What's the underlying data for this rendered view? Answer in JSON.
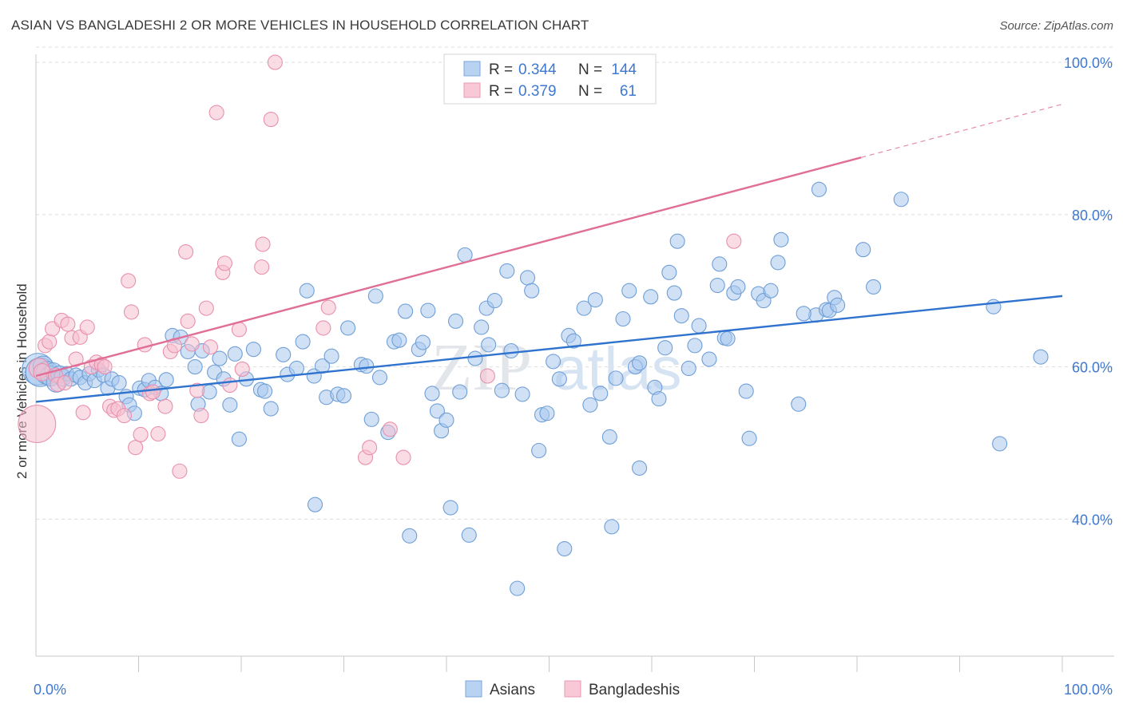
{
  "title": "ASIAN VS BANGLADESHI 2 OR MORE VEHICLES IN HOUSEHOLD CORRELATION CHART",
  "source": "Source: ZipAtlas.com",
  "watermark": {
    "zip": "ZIP",
    "atlas": "atlas"
  },
  "colors": {
    "asian_fill": "#a9c8ef",
    "asian_stroke": "#6f9fd6",
    "asian_line": "#2f73cf",
    "bangla_fill": "#f6bfd0",
    "bangla_stroke": "#e890ae",
    "bangla_line": "#e06e97",
    "tick_label": "#3f78cf",
    "grid": "#dddddd"
  },
  "legend": {
    "rows": [
      {
        "r_label": "R =",
        "r_value": "0.344",
        "n_label": "N =",
        "n_value": "144"
      },
      {
        "r_label": "R =",
        "r_value": "0.379",
        "n_label": "N =",
        "n_value": "61"
      }
    ]
  },
  "chart_data": {
    "type": "scatter",
    "xlabel": "",
    "ylabel": "2 or more Vehicles in Household",
    "xlim": [
      0,
      100
    ],
    "ylim": [
      22,
      102
    ],
    "x_tick_labels": [
      "0.0%",
      "100.0%"
    ],
    "y_ticks": [
      40,
      60,
      80,
      100
    ],
    "y_tick_labels": [
      "40.0%",
      "60.0%",
      "80.0%",
      "100.0%"
    ],
    "grid": "horizontal dashed",
    "legend_position": "top-center",
    "bottom_legend": [
      "Asians",
      "Bangladeshis"
    ],
    "series": [
      {
        "name": "Asians",
        "r": 0.344,
        "n": 144,
        "trend": {
          "x": [
            0,
            100
          ],
          "y": [
            55.4,
            69.3
          ],
          "style": "solid"
        },
        "points": [
          [
            0.2,
            59.7
          ],
          [
            0.4,
            59.3
          ],
          [
            0.7,
            60.1
          ],
          [
            1.1,
            59.2
          ],
          [
            1.4,
            58.8
          ],
          [
            1.7,
            59.4
          ],
          [
            2.0,
            58.0
          ],
          [
            2.3,
            59.0
          ],
          [
            2.6,
            58.6
          ],
          [
            3.0,
            59.1
          ],
          [
            3.4,
            58.4
          ],
          [
            3.9,
            58.9
          ],
          [
            4.3,
            58.6
          ],
          [
            4.8,
            57.9
          ],
          [
            5.2,
            59.1
          ],
          [
            5.7,
            58.2
          ],
          [
            6.1,
            59.6
          ],
          [
            6.6,
            58.9
          ],
          [
            7.0,
            57.2
          ],
          [
            7.4,
            58.4
          ],
          [
            8.1,
            57.9
          ],
          [
            8.8,
            56.1
          ],
          [
            9.1,
            55.0
          ],
          [
            9.6,
            53.9
          ],
          [
            10.1,
            57.2
          ],
          [
            10.6,
            57.0
          ],
          [
            11.0,
            58.2
          ],
          [
            11.6,
            57.3
          ],
          [
            12.2,
            56.5
          ],
          [
            12.7,
            58.3
          ],
          [
            13.3,
            64.1
          ],
          [
            14.1,
            63.9
          ],
          [
            14.8,
            62.0
          ],
          [
            15.5,
            60.0
          ],
          [
            15.8,
            55.1
          ],
          [
            16.2,
            62.1
          ],
          [
            16.9,
            56.7
          ],
          [
            17.4,
            59.3
          ],
          [
            17.9,
            61.1
          ],
          [
            18.3,
            58.4
          ],
          [
            18.9,
            55.0
          ],
          [
            19.4,
            61.7
          ],
          [
            19.8,
            50.5
          ],
          [
            20.5,
            58.4
          ],
          [
            21.2,
            62.3
          ],
          [
            21.9,
            57.0
          ],
          [
            22.3,
            56.8
          ],
          [
            22.9,
            54.5
          ],
          [
            24.1,
            61.6
          ],
          [
            24.5,
            59.0
          ],
          [
            25.4,
            59.8
          ],
          [
            26.0,
            63.3
          ],
          [
            26.4,
            70.0
          ],
          [
            27.1,
            58.8
          ],
          [
            27.9,
            60.1
          ],
          [
            28.3,
            56.0
          ],
          [
            28.8,
            61.4
          ],
          [
            29.4,
            56.4
          ],
          [
            30.0,
            56.2
          ],
          [
            30.4,
            65.1
          ],
          [
            31.7,
            60.3
          ],
          [
            32.2,
            60.1
          ],
          [
            32.7,
            53.1
          ],
          [
            33.1,
            69.3
          ],
          [
            33.5,
            58.6
          ],
          [
            34.3,
            51.4
          ],
          [
            34.9,
            63.3
          ],
          [
            35.4,
            63.5
          ],
          [
            36.0,
            67.3
          ],
          [
            36.4,
            37.8
          ],
          [
            37.3,
            62.3
          ],
          [
            37.7,
            63.2
          ],
          [
            38.2,
            67.4
          ],
          [
            38.6,
            56.5
          ],
          [
            39.1,
            54.2
          ],
          [
            39.5,
            51.6
          ],
          [
            40.0,
            53.0
          ],
          [
            40.4,
            41.5
          ],
          [
            40.9,
            66.0
          ],
          [
            41.3,
            56.7
          ],
          [
            41.8,
            74.7
          ],
          [
            42.2,
            37.9
          ],
          [
            42.8,
            61.1
          ],
          [
            43.4,
            65.2
          ],
          [
            43.9,
            67.7
          ],
          [
            44.7,
            68.7
          ],
          [
            45.4,
            56.9
          ],
          [
            45.9,
            72.6
          ],
          [
            46.3,
            62.1
          ],
          [
            46.9,
            30.9
          ],
          [
            47.4,
            56.4
          ],
          [
            47.9,
            71.7
          ],
          [
            48.3,
            70.0
          ],
          [
            49.0,
            49.0
          ],
          [
            49.3,
            53.7
          ],
          [
            49.8,
            53.9
          ],
          [
            50.4,
            60.7
          ],
          [
            51.0,
            58.4
          ],
          [
            51.5,
            36.1
          ],
          [
            51.9,
            64.1
          ],
          [
            52.4,
            63.4
          ],
          [
            53.4,
            67.7
          ],
          [
            54.0,
            55.0
          ],
          [
            54.5,
            68.8
          ],
          [
            55.0,
            56.5
          ],
          [
            55.9,
            50.8
          ],
          [
            56.1,
            39.0
          ],
          [
            56.5,
            58.5
          ],
          [
            57.2,
            66.3
          ],
          [
            57.8,
            70.0
          ],
          [
            58.4,
            60.0
          ],
          [
            58.8,
            60.5
          ],
          [
            58.8,
            46.7
          ],
          [
            59.9,
            69.2
          ],
          [
            60.3,
            57.3
          ],
          [
            60.7,
            55.8
          ],
          [
            61.3,
            62.5
          ],
          [
            61.7,
            72.4
          ],
          [
            62.2,
            69.7
          ],
          [
            62.5,
            76.5
          ],
          [
            62.9,
            66.7
          ],
          [
            63.6,
            59.8
          ],
          [
            64.2,
            62.8
          ],
          [
            64.6,
            65.4
          ],
          [
            65.6,
            61.0
          ],
          [
            66.4,
            70.7
          ],
          [
            66.6,
            73.5
          ],
          [
            67.1,
            63.8
          ],
          [
            67.4,
            63.7
          ],
          [
            68.0,
            69.7
          ],
          [
            68.4,
            70.5
          ],
          [
            69.2,
            56.8
          ],
          [
            69.5,
            50.6
          ],
          [
            70.4,
            69.6
          ],
          [
            70.9,
            68.7
          ],
          [
            71.6,
            70.0
          ],
          [
            72.3,
            73.7
          ],
          [
            72.6,
            76.7
          ],
          [
            74.3,
            55.1
          ],
          [
            76.0,
            66.8
          ],
          [
            76.3,
            83.3
          ],
          [
            77.0,
            67.5
          ],
          [
            77.3,
            67.4
          ],
          [
            77.8,
            69.1
          ],
          [
            78.1,
            68.1
          ],
          [
            80.6,
            75.4
          ],
          [
            81.6,
            70.5
          ],
          [
            84.3,
            82.0
          ],
          [
            93.3,
            67.9
          ],
          [
            93.9,
            49.9
          ],
          [
            97.9,
            61.3
          ],
          [
            74.8,
            67.0
          ],
          [
            44.1,
            62.9
          ],
          [
            27.2,
            41.9
          ]
        ],
        "point_sizes": [
          2.2,
          2.0,
          1.4,
          1.6,
          1.4,
          1.2,
          1.4,
          1.2,
          1.2,
          1.0,
          1.0,
          1.0,
          1.0,
          1.0,
          1.0,
          1.0,
          1.0,
          1.0,
          1.0,
          1.0
        ]
      },
      {
        "name": "Bangladeshis",
        "r": 0.379,
        "n": 61,
        "trend": {
          "x": [
            0,
            80.4
          ],
          "y": [
            58.8,
            87.5
          ],
          "style": "solid",
          "extension": {
            "x": [
              80.4,
              100
            ],
            "y": [
              87.5,
              94.5
            ],
            "style": "dashed"
          }
        },
        "points": [
          [
            0.1,
            52.5
          ],
          [
            0.3,
            59.8
          ],
          [
            0.6,
            59.3
          ],
          [
            0.9,
            62.8
          ],
          [
            1.3,
            63.3
          ],
          [
            1.6,
            65.0
          ],
          [
            1.9,
            58.9
          ],
          [
            2.1,
            57.7
          ],
          [
            2.5,
            66.1
          ],
          [
            2.8,
            57.9
          ],
          [
            3.1,
            65.6
          ],
          [
            3.5,
            63.8
          ],
          [
            3.9,
            61.0
          ],
          [
            4.3,
            63.9
          ],
          [
            4.6,
            54.0
          ],
          [
            5.0,
            65.2
          ],
          [
            5.4,
            60.0
          ],
          [
            5.9,
            60.6
          ],
          [
            6.4,
            60.3
          ],
          [
            6.7,
            60.0
          ],
          [
            7.2,
            54.8
          ],
          [
            7.6,
            54.3
          ],
          [
            8.0,
            54.5
          ],
          [
            8.6,
            53.6
          ],
          [
            9.0,
            71.3
          ],
          [
            9.3,
            67.2
          ],
          [
            9.7,
            49.4
          ],
          [
            10.2,
            51.1
          ],
          [
            10.6,
            62.9
          ],
          [
            11.1,
            56.5
          ],
          [
            11.4,
            56.7
          ],
          [
            11.9,
            51.2
          ],
          [
            12.6,
            54.8
          ],
          [
            13.1,
            62.0
          ],
          [
            13.5,
            62.8
          ],
          [
            14.0,
            46.3
          ],
          [
            14.6,
            75.1
          ],
          [
            14.8,
            66.0
          ],
          [
            15.2,
            63.0
          ],
          [
            15.7,
            56.9
          ],
          [
            16.1,
            53.6
          ],
          [
            16.6,
            67.7
          ],
          [
            17.0,
            62.6
          ],
          [
            17.6,
            93.4
          ],
          [
            18.2,
            72.4
          ],
          [
            18.4,
            73.6
          ],
          [
            18.9,
            57.6
          ],
          [
            19.8,
            64.9
          ],
          [
            20.1,
            59.7
          ],
          [
            22.0,
            73.1
          ],
          [
            22.1,
            76.1
          ],
          [
            22.9,
            92.5
          ],
          [
            23.3,
            100.0
          ],
          [
            28.0,
            65.1
          ],
          [
            28.5,
            67.8
          ],
          [
            32.1,
            48.1
          ],
          [
            32.5,
            49.4
          ],
          [
            35.8,
            48.1
          ],
          [
            44.0,
            58.8
          ],
          [
            68.0,
            76.5
          ],
          [
            34.5,
            51.8
          ]
        ],
        "point_sizes": [
          2.6,
          1.4,
          1.2,
          1.0,
          1.0,
          1.0,
          1.0,
          1.0,
          1.0,
          1.0
        ]
      }
    ]
  }
}
